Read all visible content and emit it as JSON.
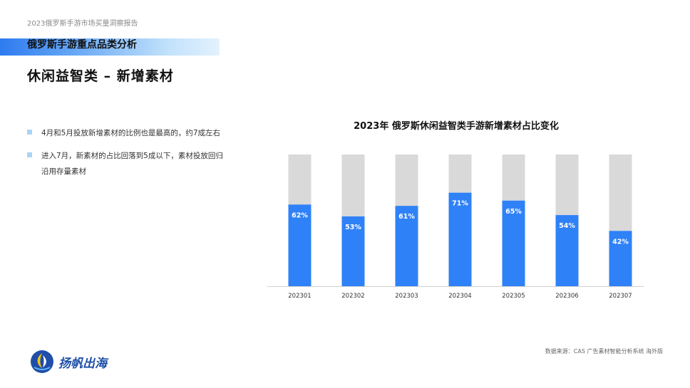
{
  "header": {
    "report_title": "2023俄罗斯手游市场买量洞察报告",
    "section_title": "俄罗斯手游重点品类分析",
    "page_title": "休闲益智类 – 新增素材"
  },
  "bullets": [
    "4月和5月投放新增素材的比例也是最高的，约7成左右",
    "进入7月，新素材的占比回落到5成以下，素材投放回归沿用存量素材"
  ],
  "chart_data": {
    "type": "bar",
    "title": "2023年 俄罗斯休闲益智类手游新增素材占比变化",
    "categories": [
      "202301",
      "202302",
      "202303",
      "202304",
      "202305",
      "202306",
      "202307"
    ],
    "values": [
      62,
      53,
      61,
      71,
      65,
      54,
      42
    ],
    "data_labels": [
      "62%",
      "53%",
      "61%",
      "71%",
      "65%",
      "54%",
      "42%"
    ],
    "ylim": [
      0,
      100
    ],
    "stacked_to": 100,
    "colors": {
      "value": "#2f81f7",
      "remainder": "#d9d9d9"
    },
    "grid": false,
    "legend": "none"
  },
  "footer": {
    "source": "数据来源：CAS 广告素材智能分析系统 海外版",
    "logo_text": "扬帆出海"
  }
}
